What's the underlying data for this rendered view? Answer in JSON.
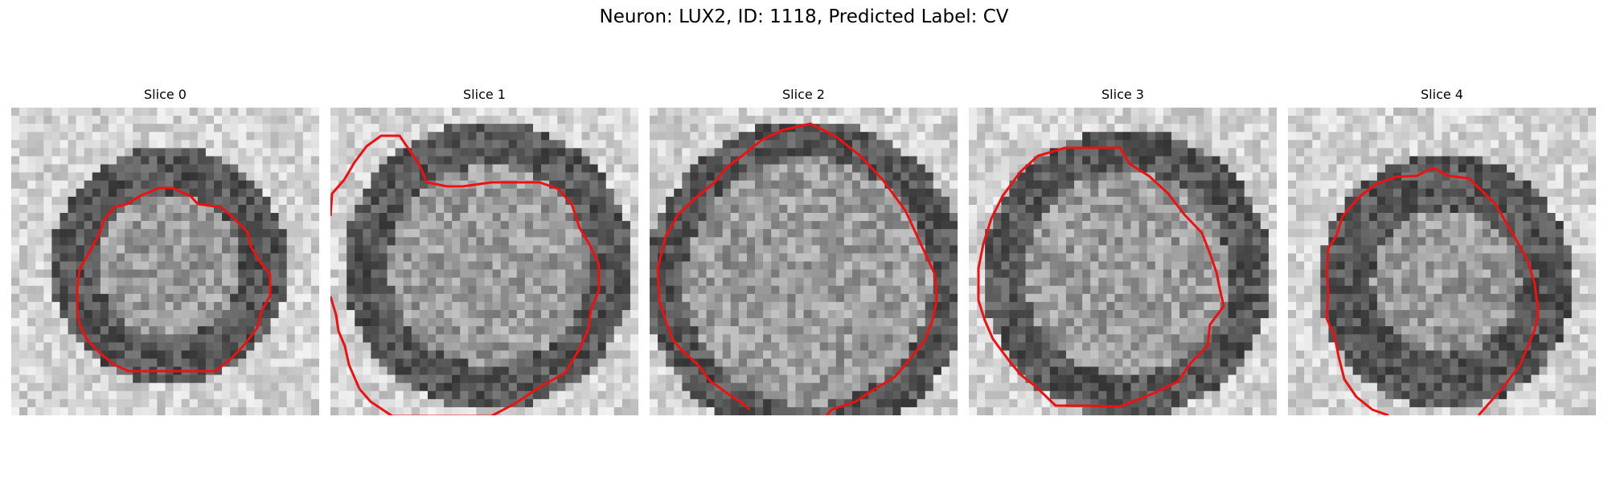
{
  "figure": {
    "title": "Neuron: LUX2, ID: 1118, Predicted Label: CV"
  },
  "panels": [
    {
      "title": "Slice 0"
    },
    {
      "title": "Slice 1"
    },
    {
      "title": "Slice 2"
    },
    {
      "title": "Slice 3"
    },
    {
      "title": "Slice 4"
    }
  ],
  "colors": {
    "contour": "#ee1111",
    "colormap": "grayscale"
  }
}
